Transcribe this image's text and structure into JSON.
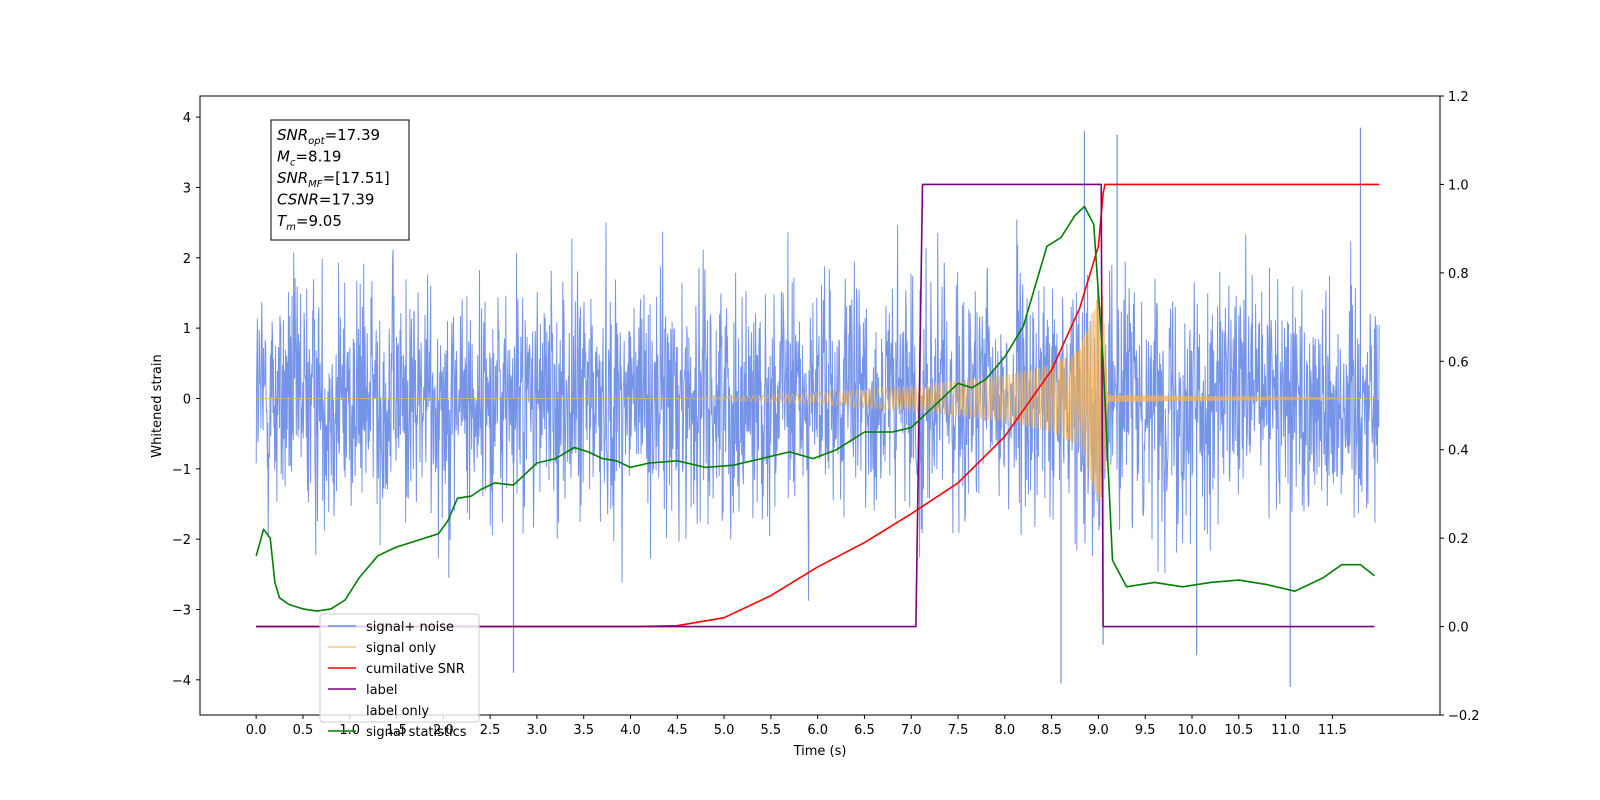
{
  "chart_data": {
    "type": "line",
    "xlabel": "Time (s)",
    "ylabel_left": "Whitened strain",
    "ylabel_right": "",
    "xlim": [
      -0.6,
      12.65
    ],
    "ylim_left": [
      -4.5,
      4.3
    ],
    "ylim_right": [
      -0.2,
      1.2
    ],
    "x_ticks": [
      "0.0",
      "0.5",
      "1.0",
      "1.5",
      "2.0",
      "2.5",
      "3.0",
      "3.5",
      "4.0",
      "4.5",
      "5.0",
      "5.5",
      "6.0",
      "6.5",
      "7.0",
      "7.5",
      "8.0",
      "8.5",
      "9.0",
      "9.5",
      "10.0",
      "10.5",
      "11.0",
      "11.5"
    ],
    "y_ticks_left": [
      "4",
      "3",
      "2",
      "1",
      "0",
      "−1",
      "−2",
      "−3",
      "−4"
    ],
    "y_ticks_right": [
      "1.2",
      "1.0",
      "0.8",
      "0.6",
      "0.4",
      "0.2",
      "0.0",
      "−0.2"
    ],
    "grid": false,
    "legend_position": "lower-left",
    "colors": {
      "signal_noise": "#6f8ee6",
      "signal_only": "#f5b24e",
      "cumulative_snr": "#ff0000",
      "label": "#7a0080",
      "signal_statistics": "#007f00"
    },
    "series": [
      {
        "name": "signal+ noise",
        "axis": "left",
        "style": "dense-noise",
        "x_range": [
          0.0,
          12.0
        ],
        "amplitude_approx": 2.5,
        "extremes": {
          "max": 3.85,
          "min": -4.1
        }
      },
      {
        "name": "signal only",
        "axis": "left",
        "style": "chirp",
        "x_range": [
          0.0,
          12.0
        ],
        "envelope": {
          "x": [
            0,
            4.5,
            6.0,
            7.0,
            7.5,
            8.0,
            8.5,
            8.8,
            9.0,
            9.05,
            9.1,
            12.0
          ],
          "y": [
            0.0,
            0.0,
            0.08,
            0.18,
            0.25,
            0.33,
            0.48,
            0.7,
            1.5,
            1.5,
            0.05,
            0.0
          ]
        }
      },
      {
        "name": "cumilative SNR",
        "axis": "right",
        "x": [
          0.0,
          4.0,
          4.5,
          5.0,
          5.5,
          6.0,
          6.5,
          7.0,
          7.5,
          8.0,
          8.5,
          8.8,
          9.0,
          9.05,
          9.07,
          12.0
        ],
        "y": [
          0.0,
          0.0,
          0.002,
          0.02,
          0.07,
          0.135,
          0.19,
          0.255,
          0.325,
          0.43,
          0.58,
          0.72,
          0.86,
          0.98,
          1.0,
          1.0
        ]
      },
      {
        "name": "label",
        "axis": "right",
        "x": [
          0.0,
          7.05,
          7.12,
          9.0,
          9.03,
          9.05,
          11.95
        ],
        "y": [
          0.0,
          0.0,
          1.0,
          1.0,
          1.0,
          0.0,
          0.0
        ]
      },
      {
        "name": "label only",
        "axis": "right",
        "hidden": true,
        "x": [],
        "y": []
      },
      {
        "name": "signal statistics",
        "axis": "right",
        "x": [
          0.0,
          0.08,
          0.15,
          0.2,
          0.25,
          0.35,
          0.5,
          0.65,
          0.8,
          0.95,
          1.1,
          1.3,
          1.5,
          1.65,
          1.8,
          1.95,
          2.05,
          2.15,
          2.3,
          2.4,
          2.55,
          2.75,
          3.0,
          3.2,
          3.4,
          3.55,
          3.7,
          3.85,
          4.0,
          4.2,
          4.5,
          4.8,
          5.1,
          5.4,
          5.7,
          5.95,
          6.2,
          6.5,
          6.8,
          7.0,
          7.15,
          7.35,
          7.5,
          7.65,
          7.8,
          8.0,
          8.2,
          8.45,
          8.6,
          8.75,
          8.85,
          8.95,
          9.05,
          9.15,
          9.3,
          9.6,
          9.9,
          10.2,
          10.5,
          10.8,
          11.1,
          11.4,
          11.6,
          11.8,
          11.95
        ],
        "y": [
          0.16,
          0.22,
          0.2,
          0.1,
          0.065,
          0.05,
          0.04,
          0.035,
          0.04,
          0.06,
          0.11,
          0.16,
          0.18,
          0.19,
          0.2,
          0.21,
          0.24,
          0.29,
          0.295,
          0.31,
          0.325,
          0.32,
          0.37,
          0.38,
          0.405,
          0.395,
          0.38,
          0.375,
          0.36,
          0.37,
          0.375,
          0.36,
          0.365,
          0.38,
          0.395,
          0.38,
          0.4,
          0.44,
          0.44,
          0.45,
          0.48,
          0.52,
          0.55,
          0.54,
          0.56,
          0.61,
          0.68,
          0.86,
          0.88,
          0.93,
          0.95,
          0.91,
          0.6,
          0.15,
          0.09,
          0.1,
          0.09,
          0.1,
          0.105,
          0.095,
          0.08,
          0.11,
          0.14,
          0.14,
          0.115
        ]
      }
    ],
    "legend_entries": [
      "signal+ noise",
      "signal only",
      "cumilative SNR",
      "label",
      "label only",
      "signal statistics"
    ],
    "info_box": [
      {
        "symbol": "SNR",
        "sub": "opt",
        "value": "=17.39"
      },
      {
        "symbol": "M",
        "sub": "c",
        "value": "=8.19"
      },
      {
        "symbol": "SNR",
        "sub": "MF",
        "value": "=[17.51]"
      },
      {
        "symbol": "CSNR",
        "sub": "",
        "value": "=17.39"
      },
      {
        "symbol": "T",
        "sub": "m",
        "value": "=9.05"
      }
    ]
  }
}
